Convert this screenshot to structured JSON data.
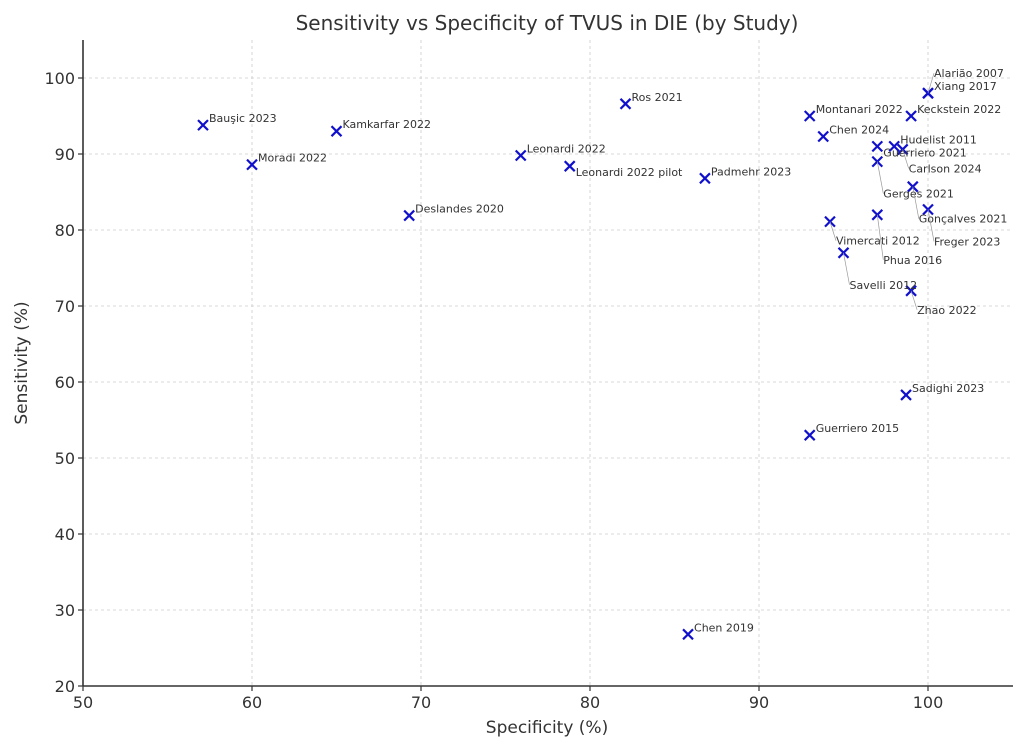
{
  "chart_data": {
    "type": "scatter",
    "title": "Sensitivity vs Specificity of TVUS in DIE (by Study)",
    "xlabel": "Specificity (%)",
    "ylabel": "Sensitivity (%)",
    "xlim": [
      50,
      105
    ],
    "ylim": [
      20,
      105
    ],
    "xticks": [
      50,
      60,
      70,
      80,
      90,
      100
    ],
    "yticks": [
      20,
      30,
      40,
      50,
      60,
      70,
      80,
      90,
      100
    ],
    "grid": true,
    "marker": "x",
    "color": "#1010cc",
    "points": [
      {
        "label": "Bauşic 2023",
        "x": 57.1,
        "y": 93.8
      },
      {
        "label": "Moradi 2022",
        "x": 60.0,
        "y": 88.6
      },
      {
        "label": "Kamkarfar 2022",
        "x": 65.0,
        "y": 93.0
      },
      {
        "label": "Deslandes 2020",
        "x": 69.3,
        "y": 81.9
      },
      {
        "label": "Leonardi 2022",
        "x": 75.9,
        "y": 89.8
      },
      {
        "label": "Leonardi 2022 pilot",
        "x": 78.8,
        "y": 88.4
      },
      {
        "label": "Ros 2021",
        "x": 82.1,
        "y": 96.6
      },
      {
        "label": "Padmehr 2023",
        "x": 86.8,
        "y": 86.8
      },
      {
        "label": "Chen 2019",
        "x": 85.8,
        "y": 26.8
      },
      {
        "label": "Montanari 2022",
        "x": 93.0,
        "y": 95.0
      },
      {
        "label": "Chen 2024",
        "x": 93.8,
        "y": 92.3
      },
      {
        "label": "Keckstein 2022",
        "x": 99.0,
        "y": 95.0
      },
      {
        "label": "Xiang 2017",
        "x": 100.0,
        "y": 98.0
      },
      {
        "label": "Alarião 2007",
        "x": 100.0,
        "y": 98.0
      },
      {
        "label": "Guerriero 2021",
        "x": 97.0,
        "y": 91.0
      },
      {
        "label": "Hudelist 2011",
        "x": 98.0,
        "y": 91.0
      },
      {
        "label": "Carlson 2024",
        "x": 98.5,
        "y": 90.6
      },
      {
        "label": "Gerges 2021",
        "x": 97.0,
        "y": 89.0
      },
      {
        "label": "Gonçalves 2021",
        "x": 99.1,
        "y": 85.7
      },
      {
        "label": "Freger 2023",
        "x": 100.0,
        "y": 82.7
      },
      {
        "label": "Phua 2016",
        "x": 97.0,
        "y": 82.0
      },
      {
        "label": "Vimercati 2012",
        "x": 94.2,
        "y": 81.1
      },
      {
        "label": "Savelli 2012",
        "x": 95.0,
        "y": 77.0
      },
      {
        "label": "Zhao 2022",
        "x": 99.0,
        "y": 72.0
      },
      {
        "label": "Sadighi 2023",
        "x": 98.7,
        "y": 58.3
      },
      {
        "label": "Guerriero 2015",
        "x": 93.0,
        "y": 53.0
      }
    ]
  }
}
